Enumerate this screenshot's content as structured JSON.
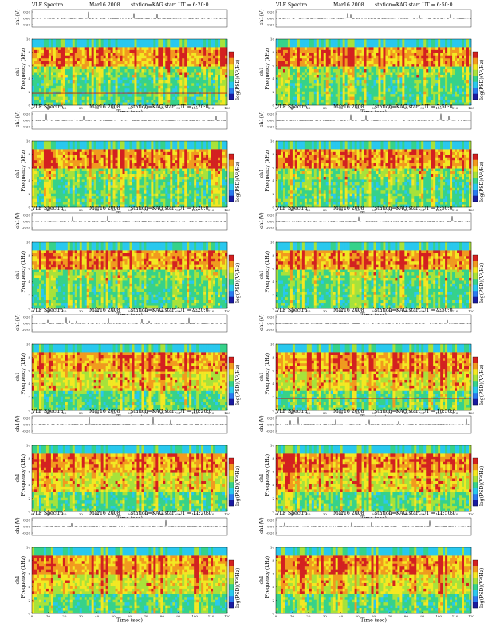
{
  "chart_data": {
    "type": "heatmap",
    "common": {
      "header_left": "VLF Spectra",
      "header_date": "Mar16 2008",
      "header_station": "station=KAG",
      "header_start": "start UT =",
      "top_ylabel": "ch1(V)",
      "top_ticks": [
        "0.20",
        "0.00",
        "-0.20"
      ],
      "ylabel_channel": "ch1",
      "ylabel": "Frequency (kHz)",
      "yticks": [
        "0",
        "2",
        "4",
        "6",
        "8",
        "10"
      ],
      "ylim": [
        0,
        10
      ],
      "xlabel": "Time (sec)",
      "xticks": [
        "0",
        "10",
        "20",
        "30",
        "40",
        "50",
        "60",
        "70",
        "80",
        "90",
        "100",
        "110",
        "120"
      ],
      "xlim": [
        0,
        120
      ],
      "colorbar_label": "log(PSD)(V²/Hz)",
      "colormap": [
        "#1a1aa0",
        "#2a7af0",
        "#29c8ee",
        "#36d28a",
        "#a8e23a",
        "#f4e822",
        "#f29a1e",
        "#d42020"
      ]
    },
    "panels": [
      {
        "start": "6:20:0"
      },
      {
        "start": "6:50:0"
      },
      {
        "start": "7:20:0"
      },
      {
        "start": "7:50:0"
      },
      {
        "start": "8:20:0"
      },
      {
        "start": "8:50:0"
      },
      {
        "start": "9:20:0"
      },
      {
        "start": "9:50:0"
      },
      {
        "start": "10:20:0"
      },
      {
        "start": "10:50:0"
      },
      {
        "start": "11:20:0"
      },
      {
        "start": "11:50:0"
      }
    ]
  }
}
